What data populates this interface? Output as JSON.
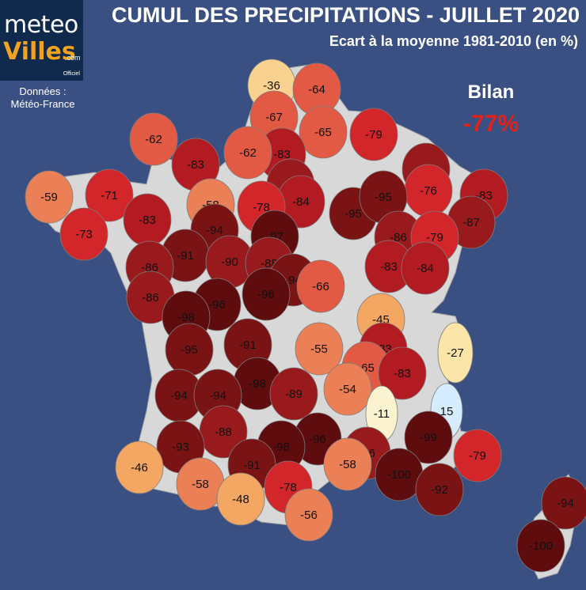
{
  "logo": {
    "word1": "meteo",
    "word2": "Villes",
    "suffix": ".com",
    "tag": "Officiel"
  },
  "source": {
    "line1": "Données :",
    "line2": "Météo-France"
  },
  "title": "CUMUL DES PRECIPITATIONS - JUILLET 2020",
  "subtitle": "Ecart à la moyenne 1981-2010 (en %)",
  "summary": {
    "label": "Bilan",
    "value": "-77%"
  },
  "colors": {
    "background": "#3b5082",
    "land": "#d8d8d8",
    "summary": "#e0221a"
  },
  "departments": [
    {
      "v": -36
    },
    {
      "v": -64
    },
    {
      "v": -67
    },
    {
      "v": -65
    },
    {
      "v": -62
    },
    {
      "v": -79
    },
    {
      "v": -83
    },
    {
      "v": -62
    },
    {
      "v": -83
    },
    {
      "v": -87
    },
    {
      "v": -59
    },
    {
      "v": -71
    },
    {
      "v": -86
    },
    {
      "v": -84
    },
    {
      "v": -95
    },
    {
      "v": -76
    },
    {
      "v": -83
    },
    {
      "v": -58
    },
    {
      "v": -78
    },
    {
      "v": -95
    },
    {
      "v": -87
    },
    {
      "v": -83
    },
    {
      "v": -94
    },
    {
      "v": -73
    },
    {
      "v": -97
    },
    {
      "v": -86
    },
    {
      "v": -79
    },
    {
      "v": -91
    },
    {
      "v": -90
    },
    {
      "v": -88
    },
    {
      "v": -83
    },
    {
      "v": -84
    },
    {
      "v": -86
    },
    {
      "v": -94
    },
    {
      "v": -66
    },
    {
      "v": -86
    },
    {
      "v": -96
    },
    {
      "v": -96
    },
    {
      "v": -98
    },
    {
      "v": -45
    },
    {
      "v": -91
    },
    {
      "v": -95
    },
    {
      "v": -55
    },
    {
      "v": -83
    },
    {
      "v": -27
    },
    {
      "v": -65
    },
    {
      "v": -83
    },
    {
      "v": -98
    },
    {
      "v": -89
    },
    {
      "v": -54
    },
    {
      "v": -94
    },
    {
      "v": -94
    },
    {
      "v": -11
    },
    {
      "v": 15
    },
    {
      "v": -88
    },
    {
      "v": -99
    },
    {
      "v": -93
    },
    {
      "v": -96
    },
    {
      "v": -98
    },
    {
      "v": -86
    },
    {
      "v": -91
    },
    {
      "v": -58
    },
    {
      "v": -79
    },
    {
      "v": -46
    },
    {
      "v": -100
    },
    {
      "v": -58
    },
    {
      "v": -92
    },
    {
      "v": -48
    },
    {
      "v": -78
    },
    {
      "v": -56
    },
    {
      "v": -94
    },
    {
      "v": -100
    }
  ]
}
